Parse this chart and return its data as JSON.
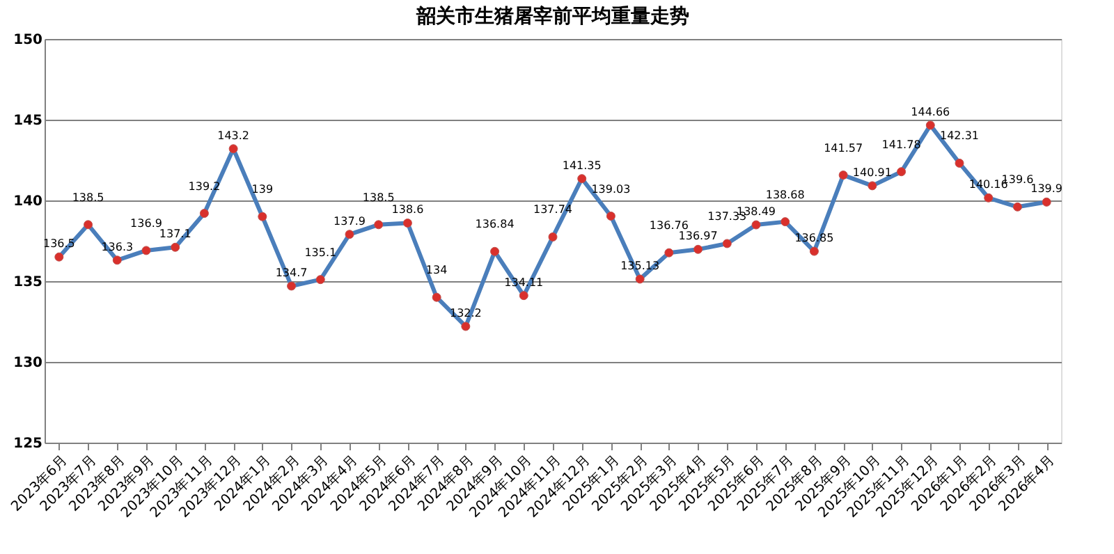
{
  "chart_data": {
    "type": "line",
    "title": "韶关市生猪屠宰前平均重量走势",
    "categories": [
      "2023年6月",
      "2023年7月",
      "2023年8月",
      "2023年9月",
      "2023年10月",
      "2023年11月",
      "2023年12月",
      "2024年1月",
      "2024年2月",
      "2024年3月",
      "2024年4月",
      "2024年5月",
      "2024年6月",
      "2024年7月",
      "2024年8月",
      "2024年9月",
      "2024年10月",
      "2024年11月",
      "2024年12月",
      "2025年1月",
      "2025年2月",
      "2025年3月",
      "2025年4月",
      "2025年5月",
      "2025年6月",
      "2025年7月",
      "2025年8月",
      "2025年9月",
      "2025年10月",
      "2025年11月",
      "2025年12月",
      "2026年1月",
      "2026年2月",
      "2026年3月",
      "2026年4月"
    ],
    "series": [
      {
        "color": "#4a7ebb",
        "values": [
          136.5,
          138.5,
          136.3,
          136.9,
          137.1,
          139.2,
          143.2,
          139,
          134.7,
          135.1,
          137.9,
          138.5,
          138.6,
          134,
          132.2,
          136.84,
          134.11,
          137.74,
          141.35,
          139.03,
          135.13,
          136.76,
          136.97,
          137.33,
          138.49,
          138.68,
          136.85,
          141.57,
          140.91,
          141.78,
          144.66,
          142.31,
          140.16,
          139.6,
          139.9
        ]
      }
    ],
    "ylim": [
      125,
      150
    ],
    "yticks": [
      125,
      130,
      135,
      140,
      145,
      150
    ],
    "grid": "y",
    "marker": "circle",
    "line_style": "solid",
    "data_labels": true
  }
}
